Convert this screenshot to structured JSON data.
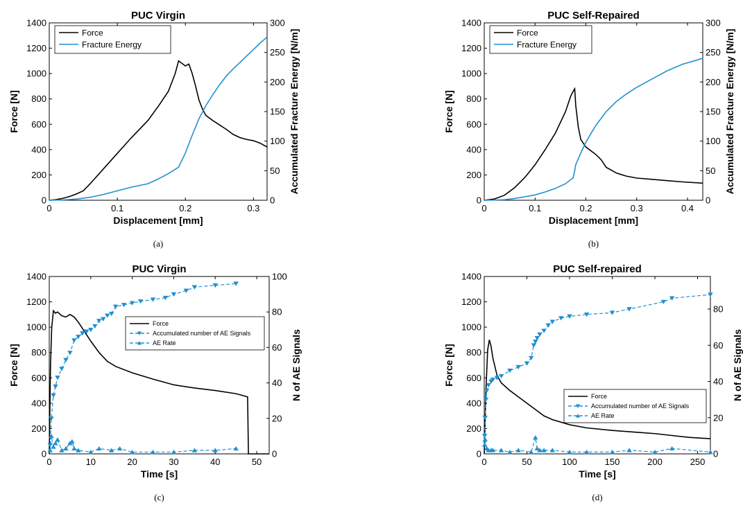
{
  "colors": {
    "force": "#000000",
    "energy": "#1e90d0",
    "ae": "#1e90d0"
  },
  "chart_data": [
    {
      "type": "line",
      "panel": "a",
      "title": "PUC Virgin",
      "caption": "(a)",
      "xlabel": "Displacement [mm]",
      "ylabel": "Force [N]",
      "y2label": "Accumulated Fracture Energy [N/m]",
      "xlim": [
        0,
        0.32
      ],
      "ylim": [
        0,
        1400
      ],
      "y2lim": [
        0,
        300
      ],
      "xticks": [
        0,
        0.1,
        0.2,
        0.3
      ],
      "xtick_labels": [
        "0",
        "0.1",
        "0.2",
        "0.3"
      ],
      "yticks": [
        0,
        200,
        400,
        600,
        800,
        1000,
        1200,
        1400
      ],
      "ytick_labels": [
        "0",
        "200",
        "400",
        "600",
        "800",
        "1000",
        "1200",
        "1400"
      ],
      "y2ticks": [
        0,
        50,
        100,
        150,
        200,
        250,
        300
      ],
      "y2tick_labels": [
        "0",
        "50",
        "100",
        "150",
        "200",
        "250",
        "300"
      ],
      "legend_position": "top-left",
      "series": [
        {
          "name": "Force",
          "axis": "left",
          "color": "#000000",
          "marker": "none",
          "x": [
            0,
            0.01,
            0.02,
            0.03,
            0.04,
            0.05,
            0.06,
            0.08,
            0.1,
            0.12,
            0.145,
            0.16,
            0.175,
            0.185,
            0.19,
            0.195,
            0.2,
            0.205,
            0.21,
            0.215,
            0.22,
            0.225,
            0.23,
            0.24,
            0.25,
            0.26,
            0.27,
            0.28,
            0.29,
            0.3,
            0.31,
            0.32
          ],
          "y": [
            0,
            5,
            15,
            30,
            50,
            75,
            130,
            250,
            370,
            490,
            630,
            740,
            860,
            1000,
            1100,
            1080,
            1060,
            1075,
            1000,
            900,
            790,
            720,
            670,
            630,
            595,
            560,
            520,
            495,
            480,
            470,
            450,
            420
          ]
        },
        {
          "name": "Fracture Energy",
          "axis": "right",
          "color": "#1e90d0",
          "marker": "none",
          "x": [
            0,
            0.02,
            0.04,
            0.06,
            0.08,
            0.1,
            0.12,
            0.145,
            0.16,
            0.175,
            0.19,
            0.2,
            0.21,
            0.22,
            0.23,
            0.24,
            0.25,
            0.26,
            0.27,
            0.28,
            0.29,
            0.3,
            0.31,
            0.32
          ],
          "y": [
            0,
            0.5,
            2,
            5,
            10,
            16,
            22,
            28,
            36,
            45,
            56,
            80,
            110,
            138,
            160,
            178,
            195,
            210,
            222,
            233,
            244,
            255,
            266,
            276
          ]
        }
      ]
    },
    {
      "type": "line",
      "panel": "b",
      "title": "PUC Self-Repaired",
      "caption": "(b)",
      "xlabel": "Displacement [mm]",
      "ylabel": "Force [N]",
      "y2label": "Accumulated Fracture Energy [N/m]",
      "xlim": [
        0,
        0.43
      ],
      "ylim": [
        0,
        1400
      ],
      "y2lim": [
        0,
        300
      ],
      "xticks": [
        0,
        0.1,
        0.2,
        0.3,
        0.4
      ],
      "xtick_labels": [
        "0",
        "0.1",
        "0.2",
        "0.3",
        "0.4"
      ],
      "yticks": [
        0,
        200,
        400,
        600,
        800,
        1000,
        1200,
        1400
      ],
      "ytick_labels": [
        "0",
        "200",
        "400",
        "600",
        "800",
        "1000",
        "1200",
        "1400"
      ],
      "y2ticks": [
        0,
        50,
        100,
        150,
        200,
        250,
        300
      ],
      "y2tick_labels": [
        "0",
        "50",
        "100",
        "150",
        "200",
        "250",
        "300"
      ],
      "legend_position": "top-left",
      "series": [
        {
          "name": "Force",
          "axis": "left",
          "color": "#000000",
          "marker": "none",
          "x": [
            0,
            0.02,
            0.04,
            0.06,
            0.08,
            0.1,
            0.12,
            0.14,
            0.16,
            0.17,
            0.175,
            0.178,
            0.18,
            0.185,
            0.19,
            0.2,
            0.21,
            0.22,
            0.23,
            0.24,
            0.26,
            0.28,
            0.3,
            0.33,
            0.36,
            0.39,
            0.43
          ],
          "y": [
            0,
            10,
            40,
            100,
            180,
            280,
            400,
            530,
            700,
            820,
            860,
            880,
            750,
            580,
            480,
            420,
            390,
            360,
            320,
            260,
            215,
            190,
            175,
            165,
            155,
            145,
            135
          ]
        },
        {
          "name": "Fracture Energy",
          "axis": "right",
          "color": "#1e90d0",
          "marker": "none",
          "x": [
            0,
            0.02,
            0.04,
            0.06,
            0.08,
            0.1,
            0.12,
            0.14,
            0.16,
            0.175,
            0.178,
            0.18,
            0.19,
            0.2,
            0.21,
            0.22,
            0.24,
            0.26,
            0.28,
            0.3,
            0.33,
            0.36,
            0.39,
            0.43
          ],
          "y": [
            0,
            0.3,
            1,
            3,
            6,
            9,
            14,
            20,
            28,
            38,
            50,
            60,
            80,
            98,
            113,
            127,
            150,
            167,
            180,
            191,
            205,
            219,
            230,
            240
          ]
        }
      ]
    },
    {
      "type": "line",
      "panel": "c",
      "title": "PUC Virgin",
      "caption": "(c)",
      "xlabel": "Time [s]",
      "ylabel": "Force [N]",
      "y2label": "N of AE Signals",
      "xlim": [
        0,
        53
      ],
      "ylim": [
        0,
        1400
      ],
      "y2lim": [
        0,
        100
      ],
      "xticks": [
        0,
        10,
        20,
        30,
        40,
        50
      ],
      "xtick_labels": [
        "0",
        "10",
        "20",
        "30",
        "40",
        "50"
      ],
      "yticks": [
        0,
        200,
        400,
        600,
        800,
        1000,
        1200,
        1400
      ],
      "ytick_labels": [
        "0",
        "200",
        "400",
        "600",
        "800",
        "1000",
        "1200",
        "1400"
      ],
      "y2ticks": [
        0,
        20,
        40,
        60,
        80,
        100
      ],
      "y2tick_labels": [
        "0",
        "20",
        "40",
        "60",
        "80",
        "100"
      ],
      "legend_position": "center-right",
      "series": [
        {
          "name": "Force",
          "axis": "left",
          "color": "#000000",
          "marker": "none",
          "x": [
            0,
            0.3,
            0.6,
            1,
            1.5,
            2,
            3,
            4,
            5,
            6,
            7,
            8,
            10,
            12,
            14,
            16,
            20,
            25,
            30,
            35,
            40,
            45,
            47.8,
            48,
            50,
            53
          ],
          "y": [
            0,
            700,
            1000,
            1130,
            1110,
            1120,
            1090,
            1080,
            1100,
            1080,
            1040,
            990,
            890,
            800,
            730,
            690,
            640,
            590,
            545,
            520,
            500,
            475,
            450,
            0,
            0,
            0
          ]
        },
        {
          "name": "Accumulated number of AE Signals",
          "axis": "right",
          "color": "#1e90d0",
          "marker": "triangle-down",
          "dashed": true,
          "x": [
            0.2,
            0.5,
            1,
            1.5,
            2,
            3,
            4,
            5,
            6,
            7,
            8,
            9,
            10,
            11,
            12,
            13,
            14,
            15,
            16,
            18,
            20,
            22,
            25,
            28,
            30,
            33,
            35,
            40,
            45
          ],
          "y": [
            5,
            20,
            33,
            38,
            43,
            48,
            53,
            57,
            64,
            66,
            68,
            69,
            70,
            72,
            75,
            76,
            78,
            79,
            83,
            84,
            85,
            86,
            87,
            88,
            90,
            92,
            94,
            95,
            96
          ]
        },
        {
          "name": "AE Rate",
          "axis": "right",
          "color": "#1e90d0",
          "marker": "triangle-up",
          "dashed": true,
          "x": [
            0.2,
            0.5,
            1,
            1.5,
            2,
            3,
            4,
            5,
            5.5,
            6,
            7,
            10,
            12,
            15,
            17,
            20,
            25,
            30,
            35,
            40,
            45
          ],
          "y": [
            2,
            10,
            4,
            6,
            8,
            2,
            3,
            6,
            7,
            3,
            2,
            1,
            3,
            2,
            3,
            1,
            1,
            1,
            2,
            2,
            3
          ]
        }
      ]
    },
    {
      "type": "line",
      "panel": "d",
      "title": "PUC Self-repaired",
      "caption": "(d)",
      "xlabel": "Time [s]",
      "ylabel": "Force [N]",
      "y2label": "N of AE Signals",
      "xlim": [
        0,
        265
      ],
      "ylim": [
        0,
        1400
      ],
      "y2lim": [
        0,
        98
      ],
      "xticks": [
        0,
        50,
        100,
        150,
        200,
        250
      ],
      "xtick_labels": [
        "0",
        "50",
        "100",
        "150",
        "200",
        "250"
      ],
      "yticks": [
        0,
        200,
        400,
        600,
        800,
        1000,
        1200,
        1400
      ],
      "ytick_labels": [
        "0",
        "200",
        "400",
        "600",
        "800",
        "1000",
        "1200",
        "1400"
      ],
      "y2ticks": [
        0,
        20,
        40,
        60,
        80
      ],
      "y2tick_labels": [
        "0",
        "20",
        "40",
        "60",
        "80"
      ],
      "legend_position": "lower-right",
      "series": [
        {
          "name": "Force",
          "axis": "left",
          "color": "#000000",
          "marker": "none",
          "x": [
            0,
            2,
            4,
            6,
            8,
            10,
            15,
            20,
            30,
            40,
            50,
            60,
            70,
            80,
            100,
            120,
            150,
            180,
            200,
            220,
            240,
            265
          ],
          "y": [
            0,
            500,
            820,
            900,
            850,
            760,
            620,
            560,
            500,
            450,
            400,
            350,
            300,
            270,
            230,
            205,
            185,
            170,
            160,
            145,
            130,
            120
          ]
        },
        {
          "name": "Accumulated number of AE Signals",
          "axis": "right",
          "color": "#1e90d0",
          "marker": "triangle-down",
          "dashed": true,
          "x": [
            0.5,
            1,
            2,
            3,
            5,
            8,
            10,
            15,
            20,
            30,
            40,
            50,
            55,
            58,
            60,
            62,
            65,
            70,
            75,
            80,
            90,
            100,
            120,
            150,
            170,
            210,
            220,
            265
          ],
          "y": [
            10,
            20,
            30,
            35,
            38,
            40,
            41,
            42,
            43,
            46,
            48,
            50,
            53,
            60,
            62,
            64,
            66,
            68,
            71,
            73,
            75,
            76,
            77,
            78,
            80,
            84,
            86,
            88
          ]
        },
        {
          "name": "AE Rate",
          "axis": "right",
          "color": "#1e90d0",
          "marker": "triangle-up",
          "dashed": true,
          "x": [
            0.5,
            1,
            3,
            5,
            8,
            10,
            20,
            30,
            40,
            55,
            60,
            62,
            65,
            70,
            80,
            100,
            120,
            150,
            170,
            200,
            220,
            265
          ],
          "y": [
            5,
            8,
            3,
            2,
            2,
            2,
            2,
            1,
            2,
            1,
            9,
            3,
            2,
            2,
            2,
            1,
            1,
            1,
            2,
            1,
            3,
            1
          ]
        }
      ]
    }
  ]
}
